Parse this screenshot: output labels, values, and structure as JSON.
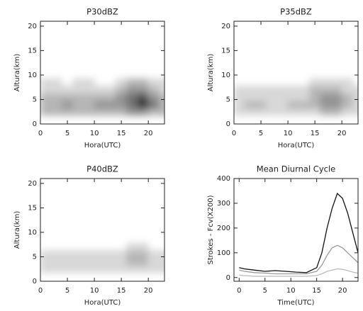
{
  "chart_data": [
    {
      "type": "contour",
      "title": "P30dBZ",
      "xlabel": "Hora(UTC)",
      "ylabel": "Altura(km)",
      "xlim": [
        0,
        23
      ],
      "ylim": [
        0,
        21
      ],
      "xticks": [
        0,
        5,
        10,
        15,
        20
      ],
      "yticks": [
        0,
        5,
        10,
        15,
        20
      ],
      "x": [
        0,
        2,
        4,
        6,
        8,
        10,
        12,
        14,
        16,
        18,
        20,
        22
      ],
      "y": [
        2.5,
        4,
        5.5,
        7,
        8.5
      ],
      "z": [
        [
          2,
          2,
          2,
          2,
          2,
          2,
          2,
          2,
          3,
          3,
          2,
          2
        ],
        [
          2,
          2,
          3,
          2,
          2,
          3,
          3,
          3,
          4,
          6,
          4,
          2
        ],
        [
          2,
          2,
          2,
          2,
          2,
          2,
          2,
          3,
          4,
          5,
          3,
          2
        ],
        [
          1,
          1,
          1,
          1,
          1,
          1,
          1,
          2,
          3,
          3,
          2,
          1
        ],
        [
          1,
          1,
          0,
          1,
          1,
          0,
          0,
          1,
          2,
          2,
          1,
          1
        ]
      ]
    },
    {
      "type": "contour",
      "title": "P35dBZ",
      "xlabel": "Hora(UTC)",
      "ylabel": "Altura(km)",
      "xlim": [
        0,
        23
      ],
      "ylim": [
        0,
        21
      ],
      "xticks": [
        0,
        5,
        10,
        15,
        20
      ],
      "yticks": [
        0,
        5,
        10,
        15,
        20
      ],
      "x": [
        0,
        2,
        4,
        6,
        8,
        10,
        12,
        14,
        16,
        18,
        20,
        22
      ],
      "y": [
        2.5,
        4,
        5.5,
        7,
        8.5
      ],
      "z": [
        [
          1,
          1,
          1,
          1,
          1,
          1,
          1,
          1,
          2,
          2,
          1,
          1
        ],
        [
          1,
          2,
          2,
          1,
          1,
          2,
          2,
          2,
          3,
          3,
          2,
          1
        ],
        [
          1,
          1,
          1,
          1,
          1,
          1,
          1,
          2,
          3,
          3,
          2,
          1
        ],
        [
          1,
          1,
          1,
          1,
          1,
          1,
          1,
          2,
          2,
          2,
          1,
          1
        ],
        [
          0,
          0,
          0,
          0,
          0,
          0,
          0,
          1,
          1,
          1,
          1,
          0
        ]
      ]
    },
    {
      "type": "contour",
      "title": "P40dBZ",
      "xlabel": "Hora(UTC)",
      "ylabel": "Altura(km)",
      "xlim": [
        0,
        23
      ],
      "ylim": [
        0,
        21
      ],
      "xticks": [
        0,
        5,
        10,
        15,
        20
      ],
      "yticks": [
        0,
        5,
        10,
        15,
        20
      ],
      "x": [
        0,
        2,
        4,
        6,
        8,
        10,
        12,
        14,
        16,
        18,
        20,
        22
      ],
      "y": [
        2.5,
        4,
        5.5,
        7,
        8.5
      ],
      "z": [
        [
          1,
          1,
          1,
          1,
          1,
          1,
          1,
          1,
          1,
          1,
          1,
          1
        ],
        [
          1,
          1,
          1,
          1,
          1,
          1,
          1,
          1,
          2,
          2,
          1,
          1
        ],
        [
          1,
          1,
          1,
          1,
          1,
          1,
          1,
          1,
          2,
          2,
          1,
          1
        ],
        [
          0,
          0,
          0,
          0,
          0,
          0,
          0,
          0,
          1,
          1,
          0,
          0
        ],
        [
          0,
          0,
          0,
          0,
          0,
          0,
          0,
          0,
          0,
          0,
          0,
          0
        ]
      ]
    },
    {
      "type": "line",
      "title": "Mean Diurnal Cycle",
      "xlabel": "Time(UTC)",
      "ylabel": "Strokes - Fcv(X200)",
      "xlim": [
        -1,
        23
      ],
      "ylim": [
        -15,
        400
      ],
      "xticks": [
        0,
        5,
        10,
        15,
        20
      ],
      "yticks": [
        0,
        100,
        200,
        300,
        400
      ],
      "x": [
        0,
        1,
        3,
        5,
        7,
        9,
        11,
        13,
        15,
        16,
        17,
        18,
        19,
        20,
        21,
        22,
        23
      ],
      "series": [
        {
          "color": "#111111",
          "values": [
            40,
            35,
            30,
            25,
            28,
            25,
            22,
            20,
            40,
            100,
            200,
            280,
            340,
            320,
            260,
            180,
            100
          ]
        },
        {
          "color": "#999999",
          "values": [
            30,
            25,
            20,
            18,
            15,
            15,
            15,
            15,
            25,
            50,
            90,
            120,
            130,
            120,
            100,
            80,
            60
          ]
        },
        {
          "color": "#bbbbbb",
          "values": [
            10,
            8,
            5,
            5,
            5,
            5,
            5,
            5,
            8,
            15,
            25,
            30,
            35,
            33,
            28,
            22,
            18
          ]
        }
      ]
    }
  ]
}
